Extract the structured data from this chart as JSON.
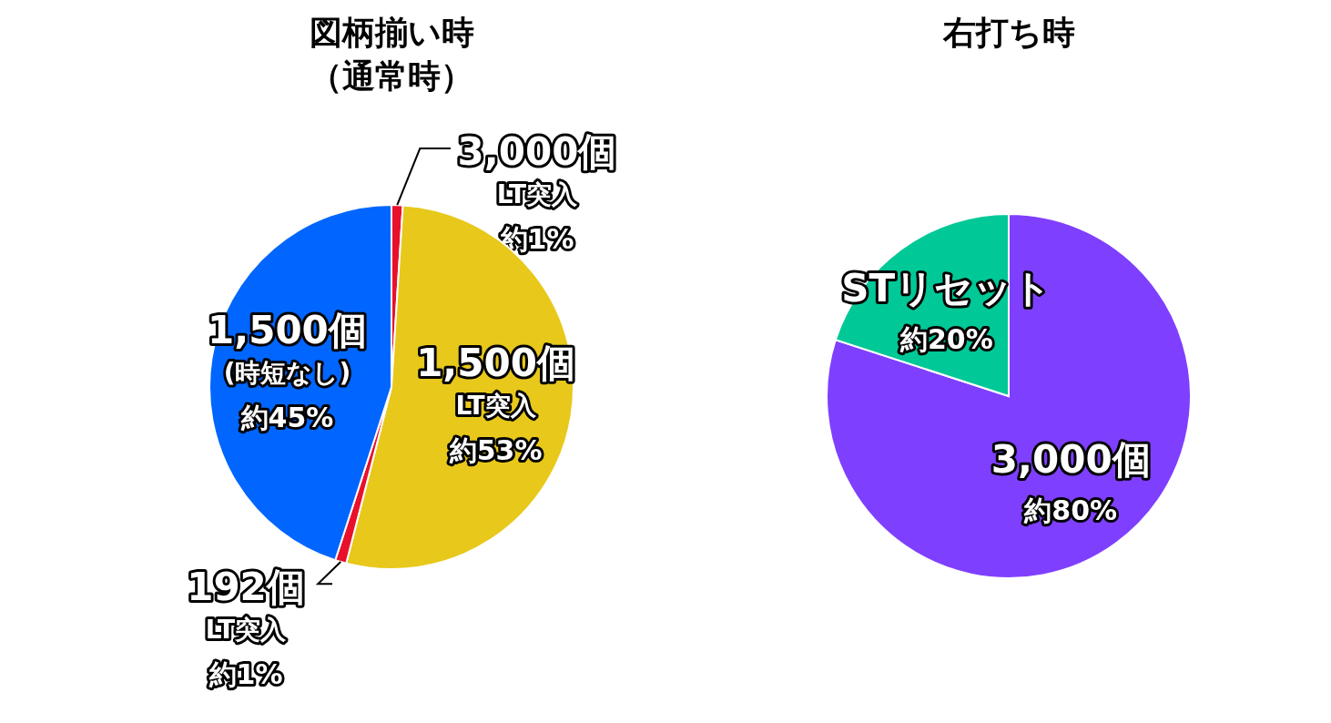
{
  "chart_data": [
    {
      "type": "pie",
      "title": "図柄揃い時",
      "subtitle": "（通常時）",
      "categories": [
        "3,000個 LT突入",
        "1,500個 LT突入",
        "192個 LT突入",
        "1,500個 (時短なし)"
      ],
      "values": [
        1,
        53,
        1,
        45
      ],
      "colors": [
        "#e8102a",
        "#e8c81a",
        "#e8102a",
        "#0066ff"
      ],
      "value_labels": [
        "約1%",
        "約53%",
        "約1%",
        "約45%"
      ]
    },
    {
      "type": "pie",
      "title": "右打ち時",
      "categories": [
        "3,000個",
        "STリセット"
      ],
      "values": [
        80,
        20
      ],
      "colors": [
        "#7f3fff",
        "#00c896"
      ],
      "value_labels": [
        "約80%",
        "約20%"
      ]
    }
  ]
}
